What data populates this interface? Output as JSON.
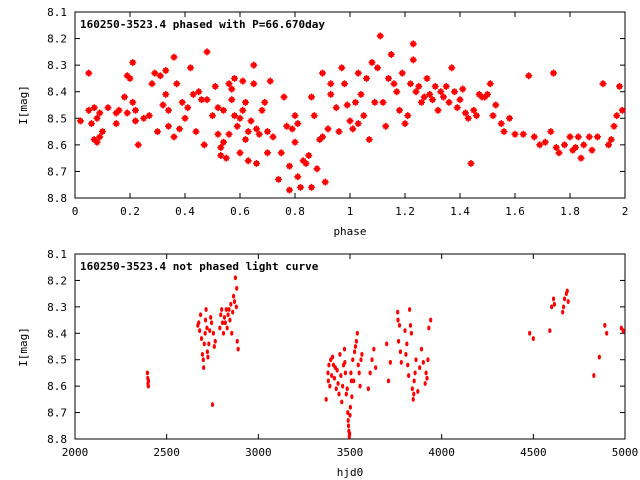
{
  "chart_data": [
    {
      "type": "scatter",
      "title": "160250-3523.4 phased with P=66.670day",
      "xlabel": "phase",
      "ylabel": "I[mag]",
      "xlim": [
        0,
        2
      ],
      "ylim": [
        8.8,
        8.1
      ],
      "y_inverted": true,
      "grid": false,
      "marker_color": "#ff0000",
      "xticks": [
        "0",
        "0.2",
        "0.4",
        "0.6",
        "0.8",
        "1",
        "1.2",
        "1.4",
        "1.6",
        "1.8",
        "2"
      ],
      "yticks": [
        "8.1",
        "8.2",
        "8.3",
        "8.4",
        "8.5",
        "8.6",
        "8.7",
        "8.8"
      ],
      "points": [
        [
          0.02,
          8.51
        ],
        [
          0.05,
          8.47
        ],
        [
          0.05,
          8.33
        ],
        [
          0.06,
          8.52
        ],
        [
          0.07,
          8.58
        ],
        [
          0.07,
          8.46
        ],
        [
          0.08,
          8.59
        ],
        [
          0.08,
          8.5
        ],
        [
          0.09,
          8.57
        ],
        [
          0.09,
          8.48
        ],
        [
          0.1,
          8.55
        ],
        [
          0.12,
          8.46
        ],
        [
          0.15,
          8.48
        ],
        [
          0.15,
          8.52
        ],
        [
          0.16,
          8.47
        ],
        [
          0.18,
          8.42
        ],
        [
          0.19,
          8.48
        ],
        [
          0.19,
          8.34
        ],
        [
          0.2,
          8.35
        ],
        [
          0.21,
          8.44
        ],
        [
          0.21,
          8.29
        ],
        [
          0.22,
          8.47
        ],
        [
          0.22,
          8.51
        ],
        [
          0.23,
          8.6
        ],
        [
          0.25,
          8.5
        ],
        [
          0.27,
          8.49
        ],
        [
          0.28,
          8.37
        ],
        [
          0.29,
          8.33
        ],
        [
          0.3,
          8.55
        ],
        [
          0.31,
          8.34
        ],
        [
          0.32,
          8.45
        ],
        [
          0.33,
          8.41
        ],
        [
          0.33,
          8.32
        ],
        [
          0.34,
          8.47
        ],
        [
          0.34,
          8.53
        ],
        [
          0.36,
          8.57
        ],
        [
          0.36,
          8.27
        ],
        [
          0.37,
          8.37
        ],
        [
          0.38,
          8.54
        ],
        [
          0.39,
          8.44
        ],
        [
          0.4,
          8.5
        ],
        [
          0.41,
          8.46
        ],
        [
          0.42,
          8.31
        ],
        [
          0.43,
          8.41
        ],
        [
          0.44,
          8.55
        ],
        [
          0.45,
          8.4
        ],
        [
          0.46,
          8.43
        ],
        [
          0.47,
          8.6
        ],
        [
          0.48,
          8.25
        ],
        [
          0.48,
          8.43
        ],
        [
          0.5,
          8.49
        ],
        [
          0.51,
          8.38
        ],
        [
          0.52,
          8.46
        ],
        [
          0.52,
          8.56
        ],
        [
          0.53,
          8.61
        ],
        [
          0.53,
          8.64
        ],
        [
          0.54,
          8.47
        ],
        [
          0.54,
          8.59
        ],
        [
          0.55,
          8.65
        ],
        [
          0.56,
          8.56
        ],
        [
          0.56,
          8.37
        ],
        [
          0.57,
          8.39
        ],
        [
          0.57,
          8.43
        ],
        [
          0.58,
          8.49
        ],
        [
          0.58,
          8.35
        ],
        [
          0.59,
          8.53
        ],
        [
          0.6,
          8.5
        ],
        [
          0.6,
          8.63
        ],
        [
          0.61,
          8.47
        ],
        [
          0.61,
          8.36
        ],
        [
          0.62,
          8.44
        ],
        [
          0.62,
          8.58
        ],
        [
          0.63,
          8.66
        ],
        [
          0.63,
          8.55
        ],
        [
          0.64,
          8.51
        ],
        [
          0.65,
          8.37
        ],
        [
          0.65,
          8.3
        ],
        [
          0.66,
          8.54
        ],
        [
          0.66,
          8.67
        ],
        [
          0.67,
          8.56
        ],
        [
          0.68,
          8.47
        ],
        [
          0.69,
          8.44
        ],
        [
          0.7,
          8.55
        ],
        [
          0.7,
          8.63
        ],
        [
          0.71,
          8.36
        ],
        [
          0.72,
          8.57
        ],
        [
          0.74,
          8.73
        ],
        [
          0.75,
          8.63
        ],
        [
          0.76,
          8.42
        ],
        [
          0.77,
          8.53
        ],
        [
          0.78,
          8.68
        ],
        [
          0.78,
          8.77
        ],
        [
          0.79,
          8.54
        ],
        [
          0.8,
          8.59
        ],
        [
          0.8,
          8.49
        ],
        [
          0.81,
          8.52
        ],
        [
          0.81,
          8.72
        ],
        [
          0.82,
          8.76
        ],
        [
          0.83,
          8.66
        ],
        [
          0.84,
          8.67
        ],
        [
          0.85,
          8.64
        ],
        [
          0.86,
          8.76
        ],
        [
          0.86,
          8.42
        ],
        [
          0.87,
          8.49
        ],
        [
          0.88,
          8.69
        ],
        [
          0.89,
          8.58
        ],
        [
          0.9,
          8.57
        ],
        [
          0.9,
          8.33
        ],
        [
          0.91,
          8.74
        ],
        [
          0.92,
          8.54
        ],
        [
          0.93,
          8.41
        ],
        [
          0.93,
          8.37
        ],
        [
          0.95,
          8.46
        ],
        [
          0.96,
          8.55
        ],
        [
          0.97,
          8.31
        ],
        [
          0.98,
          8.37
        ],
        [
          0.99,
          8.45
        ],
        [
          1.0,
          8.51
        ],
        [
          1.01,
          8.54
        ],
        [
          1.02,
          8.44
        ],
        [
          1.03,
          8.33
        ],
        [
          1.03,
          8.52
        ],
        [
          1.04,
          8.41
        ],
        [
          1.05,
          8.49
        ],
        [
          1.06,
          8.35
        ],
        [
          1.07,
          8.58
        ],
        [
          1.08,
          8.29
        ],
        [
          1.09,
          8.44
        ],
        [
          1.1,
          8.31
        ],
        [
          1.11,
          8.19
        ],
        [
          1.12,
          8.44
        ],
        [
          1.13,
          8.53
        ],
        [
          1.14,
          8.35
        ],
        [
          1.15,
          8.26
        ],
        [
          1.16,
          8.37
        ],
        [
          1.17,
          8.4
        ],
        [
          1.18,
          8.47
        ],
        [
          1.19,
          8.33
        ],
        [
          1.2,
          8.52
        ],
        [
          1.21,
          8.49
        ],
        [
          1.22,
          8.37
        ],
        [
          1.23,
          8.22
        ],
        [
          1.23,
          8.28
        ],
        [
          1.24,
          8.4
        ],
        [
          1.25,
          8.38
        ],
        [
          1.26,
          8.44
        ],
        [
          1.27,
          8.42
        ],
        [
          1.28,
          8.35
        ],
        [
          1.29,
          8.41
        ],
        [
          1.3,
          8.43
        ],
        [
          1.31,
          8.38
        ],
        [
          1.32,
          8.47
        ],
        [
          1.33,
          8.4
        ],
        [
          1.34,
          8.42
        ],
        [
          1.35,
          8.38
        ],
        [
          1.36,
          8.44
        ],
        [
          1.37,
          8.31
        ],
        [
          1.38,
          8.4
        ],
        [
          1.39,
          8.46
        ],
        [
          1.4,
          8.43
        ],
        [
          1.41,
          8.39
        ],
        [
          1.42,
          8.48
        ],
        [
          1.43,
          8.5
        ],
        [
          1.44,
          8.67
        ],
        [
          1.45,
          8.47
        ],
        [
          1.46,
          8.49
        ],
        [
          1.47,
          8.41
        ],
        [
          1.48,
          8.42
        ],
        [
          1.49,
          8.42
        ],
        [
          1.5,
          8.41
        ],
        [
          1.51,
          8.37
        ],
        [
          1.52,
          8.49
        ],
        [
          1.53,
          8.45
        ],
        [
          1.55,
          8.52
        ],
        [
          1.56,
          8.55
        ],
        [
          1.58,
          8.5
        ],
        [
          1.6,
          8.56
        ],
        [
          1.63,
          8.56
        ],
        [
          1.65,
          8.34
        ],
        [
          1.67,
          8.57
        ],
        [
          1.69,
          8.6
        ],
        [
          1.71,
          8.59
        ],
        [
          1.73,
          8.55
        ],
        [
          1.74,
          8.33
        ],
        [
          1.75,
          8.61
        ],
        [
          1.76,
          8.63
        ],
        [
          1.78,
          8.6
        ],
        [
          1.8,
          8.57
        ],
        [
          1.81,
          8.62
        ],
        [
          1.82,
          8.61
        ],
        [
          1.83,
          8.57
        ],
        [
          1.84,
          8.65
        ],
        [
          1.85,
          8.6
        ],
        [
          1.87,
          8.57
        ],
        [
          1.88,
          8.62
        ],
        [
          1.9,
          8.57
        ],
        [
          1.92,
          8.37
        ],
        [
          1.94,
          8.6
        ],
        [
          1.95,
          8.58
        ],
        [
          1.96,
          8.53
        ],
        [
          1.97,
          8.49
        ],
        [
          1.98,
          8.38
        ],
        [
          1.99,
          8.47
        ]
      ]
    },
    {
      "type": "scatter",
      "title": "160250-3523.4 not phased light curve",
      "xlabel": "hjd0",
      "ylabel": "I[mag]",
      "xlim": [
        2000,
        5000
      ],
      "ylim": [
        8.8,
        8.1
      ],
      "y_inverted": true,
      "grid": false,
      "marker_color": "#ff0000",
      "xticks": [
        "2000",
        "2500",
        "3000",
        "3500",
        "4000",
        "4500",
        "5000"
      ],
      "yticks": [
        "8.1",
        "8.2",
        "8.3",
        "8.4",
        "8.5",
        "8.6",
        "8.7",
        "8.8"
      ],
      "points": [
        [
          2395,
          8.55
        ],
        [
          2397,
          8.57
        ],
        [
          2398,
          8.59
        ],
        [
          2400,
          8.6
        ],
        [
          2401,
          8.58
        ],
        [
          2670,
          8.37
        ],
        [
          2675,
          8.36
        ],
        [
          2680,
          8.39
        ],
        [
          2685,
          8.33
        ],
        [
          2690,
          8.42
        ],
        [
          2695,
          8.48
        ],
        [
          2700,
          8.5
        ],
        [
          2702,
          8.53
        ],
        [
          2705,
          8.44
        ],
        [
          2710,
          8.4
        ],
        [
          2712,
          8.35
        ],
        [
          2715,
          8.31
        ],
        [
          2720,
          8.38
        ],
        [
          2722,
          8.47
        ],
        [
          2725,
          8.49
        ],
        [
          2730,
          8.44
        ],
        [
          2735,
          8.39
        ],
        [
          2740,
          8.34
        ],
        [
          2745,
          8.36
        ],
        [
          2750,
          8.67
        ],
        [
          2755,
          8.4
        ],
        [
          2760,
          8.45
        ],
        [
          2765,
          8.43
        ],
        [
          2790,
          8.38
        ],
        [
          2795,
          8.33
        ],
        [
          2800,
          8.31
        ],
        [
          2805,
          8.36
        ],
        [
          2810,
          8.4
        ],
        [
          2815,
          8.34
        ],
        [
          2820,
          8.36
        ],
        [
          2825,
          8.31
        ],
        [
          2830,
          8.38
        ],
        [
          2835,
          8.33
        ],
        [
          2840,
          8.31
        ],
        [
          2845,
          8.35
        ],
        [
          2850,
          8.29
        ],
        [
          2855,
          8.4
        ],
        [
          2860,
          8.32
        ],
        [
          2865,
          8.26
        ],
        [
          2870,
          8.28
        ],
        [
          2875,
          8.19
        ],
        [
          2880,
          8.3
        ],
        [
          2882,
          8.23
        ],
        [
          2885,
          8.43
        ],
        [
          2890,
          8.46
        ],
        [
          3370,
          8.65
        ],
        [
          3380,
          8.55
        ],
        [
          3382,
          8.58
        ],
        [
          3385,
          8.52
        ],
        [
          3390,
          8.6
        ],
        [
          3395,
          8.5
        ],
        [
          3400,
          8.56
        ],
        [
          3405,
          8.49
        ],
        [
          3410,
          8.52
        ],
        [
          3415,
          8.57
        ],
        [
          3420,
          8.53
        ],
        [
          3425,
          8.61
        ],
        [
          3430,
          8.54
        ],
        [
          3435,
          8.59
        ],
        [
          3440,
          8.63
        ],
        [
          3445,
          8.48
        ],
        [
          3450,
          8.56
        ],
        [
          3455,
          8.66
        ],
        [
          3460,
          8.6
        ],
        [
          3465,
          8.52
        ],
        [
          3470,
          8.46
        ],
        [
          3472,
          8.51
        ],
        [
          3475,
          8.55
        ],
        [
          3480,
          8.63
        ],
        [
          3485,
          8.61
        ],
        [
          3488,
          8.7
        ],
        [
          3490,
          8.73
        ],
        [
          3492,
          8.75
        ],
        [
          3494,
          8.77
        ],
        [
          3496,
          8.79
        ],
        [
          3498,
          8.78
        ],
        [
          3500,
          8.71
        ],
        [
          3502,
          8.68
        ],
        [
          3505,
          8.55
        ],
        [
          3508,
          8.58
        ],
        [
          3510,
          8.64
        ],
        [
          3515,
          8.5
        ],
        [
          3520,
          8.58
        ],
        [
          3525,
          8.47
        ],
        [
          3530,
          8.45
        ],
        [
          3535,
          8.43
        ],
        [
          3540,
          8.4
        ],
        [
          3545,
          8.52
        ],
        [
          3550,
          8.55
        ],
        [
          3555,
          8.6
        ],
        [
          3560,
          8.5
        ],
        [
          3565,
          8.48
        ],
        [
          3600,
          8.61
        ],
        [
          3610,
          8.55
        ],
        [
          3620,
          8.5
        ],
        [
          3630,
          8.46
        ],
        [
          3640,
          8.53
        ],
        [
          3700,
          8.44
        ],
        [
          3710,
          8.58
        ],
        [
          3720,
          8.51
        ],
        [
          3760,
          8.32
        ],
        [
          3762,
          8.35
        ],
        [
          3765,
          8.43
        ],
        [
          3770,
          8.37
        ],
        [
          3775,
          8.47
        ],
        [
          3780,
          8.51
        ],
        [
          3800,
          8.39
        ],
        [
          3805,
          8.48
        ],
        [
          3810,
          8.44
        ],
        [
          3815,
          8.52
        ],
        [
          3820,
          8.56
        ],
        [
          3825,
          8.31
        ],
        [
          3830,
          8.37
        ],
        [
          3835,
          8.4
        ],
        [
          3840,
          8.61
        ],
        [
          3845,
          8.65
        ],
        [
          3848,
          8.63
        ],
        [
          3850,
          8.58
        ],
        [
          3855,
          8.55
        ],
        [
          3860,
          8.5
        ],
        [
          3870,
          8.62
        ],
        [
          3880,
          8.53
        ],
        [
          3890,
          8.46
        ],
        [
          3900,
          8.51
        ],
        [
          3910,
          8.59
        ],
        [
          3915,
          8.55
        ],
        [
          3920,
          8.57
        ],
        [
          3925,
          8.5
        ],
        [
          3930,
          8.38
        ],
        [
          3940,
          8.35
        ],
        [
          4480,
          8.4
        ],
        [
          4500,
          8.42
        ],
        [
          4590,
          8.39
        ],
        [
          4600,
          8.3
        ],
        [
          4610,
          8.27
        ],
        [
          4615,
          8.29
        ],
        [
          4660,
          8.32
        ],
        [
          4665,
          8.3
        ],
        [
          4670,
          8.27
        ],
        [
          4680,
          8.25
        ],
        [
          4685,
          8.24
        ],
        [
          4690,
          8.28
        ],
        [
          4830,
          8.56
        ],
        [
          4860,
          8.49
        ],
        [
          4890,
          8.37
        ],
        [
          4900,
          8.4
        ],
        [
          4980,
          8.38
        ],
        [
          4990,
          8.39
        ]
      ]
    }
  ]
}
